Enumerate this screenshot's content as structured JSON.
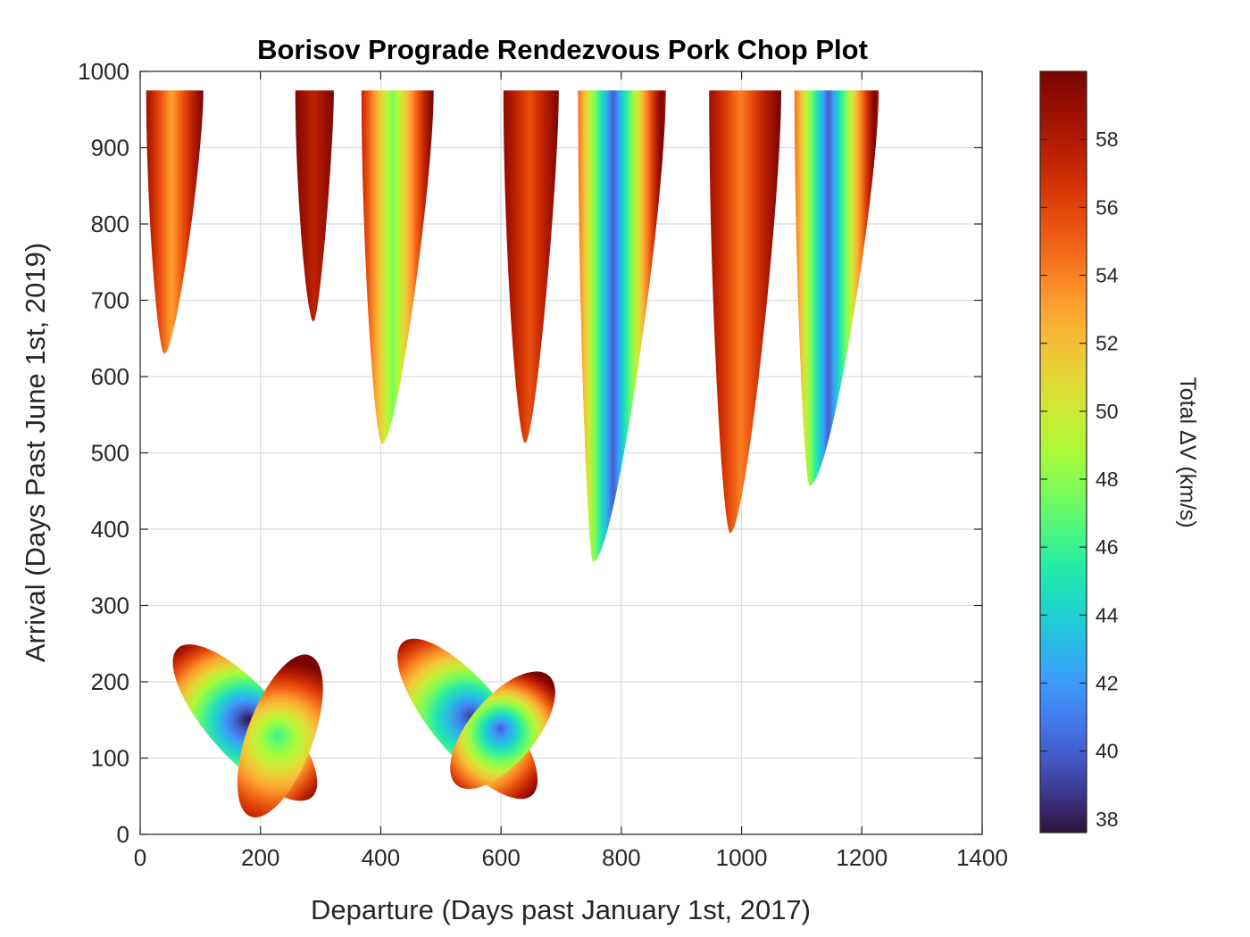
{
  "chart_data": {
    "type": "heatmap",
    "title": "Borisov Prograde Rendezvous Pork Chop Plot",
    "xlabel": "Departure (Days past January 1st, 2017)",
    "ylabel": "Arrival (Days Past June 1st, 2019)",
    "xlim": [
      0,
      1400
    ],
    "ylim": [
      0,
      1000
    ],
    "xticks": [
      0,
      200,
      400,
      600,
      800,
      1000,
      1200,
      1400
    ],
    "yticks": [
      0,
      100,
      200,
      300,
      400,
      500,
      600,
      700,
      800,
      900,
      1000
    ],
    "grid": true,
    "colorbar": {
      "label": "Total ΔV (km/s)",
      "range": [
        37.6,
        60
      ],
      "ticks": [
        38,
        40,
        42,
        44,
        46,
        48,
        50,
        52,
        54,
        56,
        58
      ],
      "colormap": "turbo",
      "placement": "right"
    },
    "regions": [
      {
        "kind": "upper",
        "x_left": 10,
        "x_right": 105,
        "vertex_x": 40,
        "vertex_y": 630,
        "top_y": 975,
        "min_dv": 53
      },
      {
        "kind": "upper",
        "x_left": 258,
        "x_right": 322,
        "vertex_x": 288,
        "vertex_y": 672,
        "top_y": 975,
        "min_dv": 57.5
      },
      {
        "kind": "upper",
        "x_left": 368,
        "x_right": 488,
        "vertex_x": 402,
        "vertex_y": 512,
        "top_y": 975,
        "min_dv": 47.5
      },
      {
        "kind": "upper",
        "x_left": 604,
        "x_right": 696,
        "vertex_x": 640,
        "vertex_y": 513,
        "top_y": 975,
        "min_dv": 55.5
      },
      {
        "kind": "upper",
        "x_left": 728,
        "x_right": 874,
        "vertex_x": 753,
        "vertex_y": 357,
        "top_y": 975,
        "min_dv": 40
      },
      {
        "kind": "upper",
        "x_left": 946,
        "x_right": 1066,
        "vertex_x": 981,
        "vertex_y": 395,
        "top_y": 975,
        "min_dv": 54
      },
      {
        "kind": "upper",
        "x_left": 1088,
        "x_right": 1228,
        "vertex_x": 1113,
        "vertex_y": 457,
        "top_y": 975,
        "min_dv": 40
      }
    ],
    "lobes": [
      {
        "center_x": 210,
        "center_y": 148,
        "tip_x": 155,
        "tip_y": 145,
        "width": 60,
        "height": 210,
        "angle_deg": 42,
        "min_dv": 37.6,
        "direction": "left"
      },
      {
        "center_x": 210,
        "center_y": 148,
        "tip_x": 245,
        "tip_y": 110,
        "width": 55,
        "height": 180,
        "angle_deg": -20,
        "min_dv": 46,
        "direction": "right"
      },
      {
        "center_x": 580,
        "center_y": 148,
        "tip_x": 525,
        "tip_y": 155,
        "width": 60,
        "height": 210,
        "angle_deg": 40,
        "min_dv": 39,
        "direction": "left"
      },
      {
        "center_x": 580,
        "center_y": 148,
        "tip_x": 615,
        "tip_y": 125,
        "width": 55,
        "height": 150,
        "angle_deg": -40,
        "min_dv": 40,
        "direction": "right"
      }
    ]
  }
}
